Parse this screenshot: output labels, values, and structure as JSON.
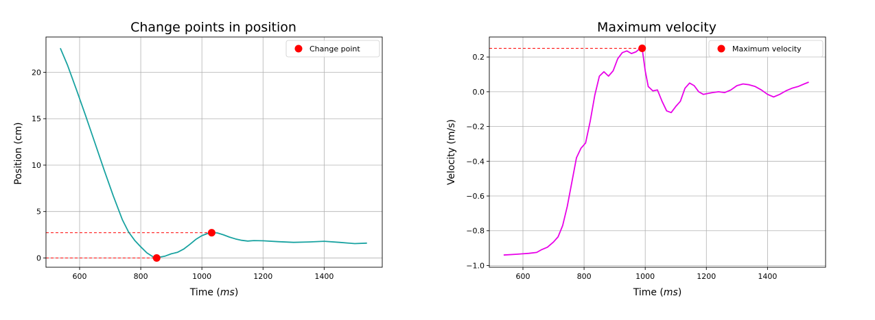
{
  "chart_data": [
    {
      "type": "line",
      "title": "Change points in position",
      "xlabel": "Time (ms)",
      "ylabel": "Position (cm)",
      "xlim": [
        490,
        1590
      ],
      "ylim": [
        -1.0,
        23.8
      ],
      "xticks": [
        600,
        800,
        1000,
        1200,
        1400
      ],
      "yticks": [
        0,
        5,
        10,
        15,
        20
      ],
      "grid": true,
      "legend_placement": "top-right",
      "line_color": "#17a2a0",
      "series": [
        {
          "x": [
            537,
            560,
            590,
            620,
            650,
            680,
            710,
            740,
            760,
            780,
            800,
            820,
            840,
            860,
            880,
            900,
            920,
            940,
            960,
            980,
            1000,
            1020,
            1032,
            1050,
            1070,
            1090,
            1110,
            1130,
            1150,
            1170,
            1200,
            1250,
            1300,
            1350,
            1400,
            1450,
            1500,
            1540
          ],
          "y": [
            22.6,
            20.8,
            18.1,
            15.3,
            12.4,
            9.5,
            6.7,
            4.1,
            2.8,
            1.9,
            1.2,
            0.55,
            0.12,
            0.08,
            0.2,
            0.45,
            0.6,
            0.95,
            1.45,
            2.0,
            2.4,
            2.65,
            2.72,
            2.7,
            2.5,
            2.25,
            2.05,
            1.9,
            1.82,
            1.87,
            1.85,
            1.75,
            1.68,
            1.72,
            1.8,
            1.68,
            1.55,
            1.6
          ]
        }
      ],
      "markers": {
        "name": "Change point",
        "color": "#ff0000",
        "points": [
          {
            "x": 852,
            "y": 0.0
          },
          {
            "x": 1032,
            "y": 2.72
          }
        ]
      }
    },
    {
      "type": "line",
      "title": "Maximum velocity",
      "xlabel": "Time (ms)",
      "ylabel": "Velocity (m/s)",
      "xlim": [
        490,
        1590
      ],
      "ylim": [
        -1.01,
        0.315
      ],
      "xticks": [
        600,
        800,
        1000,
        1200,
        1400
      ],
      "yticks": [
        0.2,
        0.0,
        -0.2,
        -0.4,
        -0.6,
        -0.8,
        -1.0
      ],
      "grid": true,
      "legend_placement": "top-right",
      "line_color": "#e800e8",
      "series": [
        {
          "x": [
            537,
            580,
            620,
            645,
            660,
            680,
            700,
            715,
            730,
            745,
            760,
            775,
            790,
            805,
            820,
            835,
            850,
            865,
            880,
            895,
            910,
            925,
            940,
            955,
            970,
            980,
            990,
            1000,
            1010,
            1025,
            1040,
            1055,
            1070,
            1085,
            1100,
            1115,
            1130,
            1145,
            1160,
            1175,
            1190,
            1205,
            1220,
            1240,
            1260,
            1280,
            1300,
            1320,
            1340,
            1360,
            1380,
            1400,
            1420,
            1440,
            1460,
            1480,
            1500,
            1520,
            1535
          ],
          "y": [
            -0.94,
            -0.935,
            -0.93,
            -0.925,
            -0.91,
            -0.895,
            -0.865,
            -0.835,
            -0.77,
            -0.66,
            -0.52,
            -0.38,
            -0.325,
            -0.295,
            -0.17,
            -0.02,
            0.09,
            0.115,
            0.09,
            0.12,
            0.19,
            0.225,
            0.235,
            0.22,
            0.23,
            0.245,
            0.25,
            0.12,
            0.03,
            0.005,
            0.01,
            -0.055,
            -0.11,
            -0.12,
            -0.085,
            -0.055,
            0.02,
            0.05,
            0.035,
            0.0,
            -0.015,
            -0.01,
            -0.005,
            0.0,
            -0.005,
            0.01,
            0.035,
            0.045,
            0.04,
            0.03,
            0.01,
            -0.015,
            -0.03,
            -0.015,
            0.005,
            0.02,
            0.03,
            0.045,
            0.055
          ]
        }
      ],
      "markers": {
        "name": "Maximum velocity",
        "color": "#ff0000",
        "points": [
          {
            "x": 990,
            "y": 0.25
          }
        ]
      }
    }
  ]
}
